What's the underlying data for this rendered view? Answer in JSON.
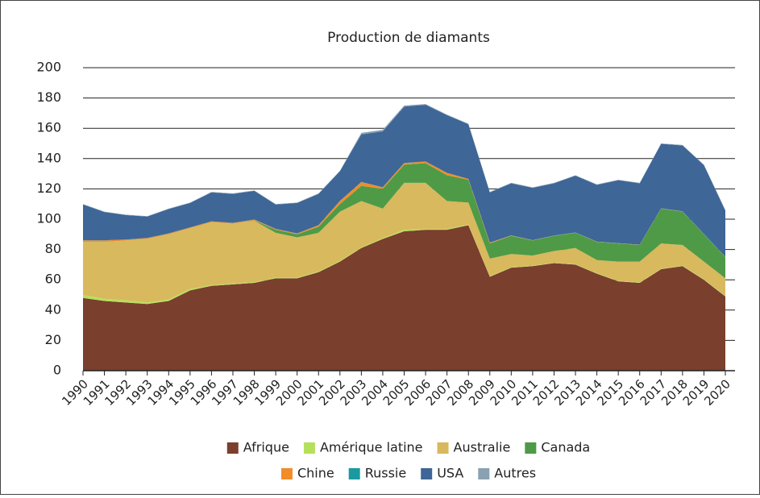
{
  "chart_data": {
    "type": "area",
    "stacked": true,
    "title": "Production de diamants",
    "categories": [
      "1990",
      "1991",
      "1992",
      "1993",
      "1994",
      "1995",
      "1996",
      "1997",
      "1998",
      "1999",
      "2000",
      "2001",
      "2002",
      "2003",
      "2004",
      "2005",
      "2006",
      "2007",
      "2008",
      "2009",
      "2010",
      "2011",
      "2012",
      "2013",
      "2014",
      "2015",
      "2016",
      "2017",
      "2018",
      "2019",
      "2020"
    ],
    "ylim": [
      0,
      200
    ],
    "yticks": [
      0,
      20,
      40,
      60,
      80,
      100,
      120,
      140,
      160,
      180,
      200
    ],
    "grid": true,
    "legend": "bottom",
    "series": [
      {
        "name": "Afrique",
        "color": "#7a3f2d",
        "values": [
          48,
          46,
          45,
          44,
          46,
          53,
          56,
          57,
          58,
          61,
          61,
          65,
          72,
          81,
          87,
          92,
          93,
          93,
          96,
          62,
          68,
          69,
          71,
          70,
          64,
          59,
          58,
          67,
          69,
          60,
          49
        ]
      },
      {
        "name": "Amérique latine",
        "color": "#b6e05b",
        "values": [
          2,
          1.5,
          1.5,
          1,
          1,
          1,
          0.5,
          0.5,
          0.5,
          0.5,
          0.5,
          0.5,
          0.5,
          0.5,
          0.5,
          1,
          0.5,
          0.5,
          0.5,
          0.3,
          0.3,
          0.3,
          0.3,
          0.3,
          0.3,
          0.3,
          0.3,
          0.3,
          0.3,
          0.3,
          0.3
        ]
      },
      {
        "name": "Australie",
        "color": "#d8b95d",
        "values": [
          35,
          37.5,
          39.5,
          42,
          43,
          40,
          41.5,
          39.5,
          40.5,
          29.5,
          26.5,
          25.5,
          32.5,
          30.5,
          19.5,
          31,
          30.5,
          18.5,
          14.5,
          11.7,
          8.7,
          6.7,
          7.7,
          10.7,
          8.7,
          12.7,
          13.7,
          16.7,
          13.7,
          11.7,
          11.7
        ]
      },
      {
        "name": "Canada",
        "color": "#4e9a47",
        "values": [
          0,
          0,
          0,
          0,
          0,
          0,
          0,
          0,
          0.2,
          2,
          2,
          4,
          5,
          10,
          13,
          12,
          13,
          17,
          15,
          10,
          12,
          10,
          10,
          10,
          12,
          12,
          11,
          23,
          22,
          18,
          14
        ]
      },
      {
        "name": "Chine",
        "color": "#f28c28",
        "values": [
          1,
          1,
          0.5,
          0.5,
          0.5,
          0.5,
          0.5,
          0.5,
          0.5,
          0.5,
          0.5,
          1,
          2,
          2.5,
          1,
          1,
          1,
          1.5,
          0.5,
          0.5,
          0.2,
          0.1,
          0.1,
          0.1,
          0.1,
          0.1,
          0.1,
          0.1,
          0.1,
          0.1,
          0.1
        ]
      },
      {
        "name": "Russie",
        "color": "#1a9aa0",
        "values": [
          0.1,
          0.1,
          0.1,
          0.1,
          0.1,
          0.1,
          0.1,
          0.1,
          0.1,
          0.1,
          0.1,
          0.1,
          0.1,
          0.1,
          0.1,
          0.1,
          0.1,
          0.1,
          0.1,
          0.1,
          0.1,
          0.1,
          0.1,
          0.1,
          0.1,
          0.1,
          0.1,
          0.1,
          0.1,
          0.1,
          0.1
        ]
      },
      {
        "name": "USA",
        "color": "#3e6697",
        "values": [
          23.6,
          18.6,
          16.1,
          14.1,
          16.1,
          16.1,
          19.1,
          19.1,
          18.9,
          16.1,
          20.1,
          20.6,
          19.6,
          31.4,
          36.9,
          37.2,
          37.4,
          38.1,
          36.1,
          33.1,
          34.4,
          34.5,
          34.5,
          37.5,
          37.5,
          41.5,
          40.5,
          42.5,
          43.5,
          45.5,
          30.5
        ]
      },
      {
        "name": "Autres",
        "color": "#8aa1b1",
        "values": [
          0.3,
          0.3,
          0.3,
          0.3,
          0.3,
          0.3,
          0.3,
          0.3,
          0.3,
          0.3,
          0.3,
          0.3,
          0.3,
          1,
          1,
          0.7,
          0.5,
          0.3,
          0.3,
          0.3,
          0.3,
          0.3,
          0.3,
          0.3,
          0.3,
          0.3,
          0.3,
          0.3,
          0.3,
          0.3,
          0.3
        ]
      }
    ]
  }
}
